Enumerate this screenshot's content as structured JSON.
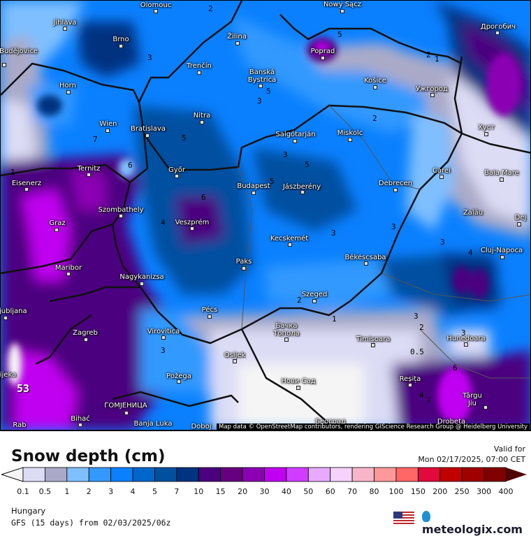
{
  "map": {
    "attribution": "Map data © OpenStreetMap contributors, rendering GIScience Research Group @ Heidelberg University",
    "cities": [
      "Olomouc",
      "Jihlava",
      "Brno",
      "České Budějovice",
      "Horn",
      "Žilina",
      "Trenčín",
      "Banská Bystrica",
      "Poprad",
      "Nowy Sącz",
      "Košice",
      "Ужгород",
      "Дрогобич",
      "Хуст",
      "Wien",
      "Bratislava",
      "Nitra",
      "Győr",
      "Salgótarján",
      "Miskolc",
      "Ternitz",
      "Eisenerz",
      "Budapest",
      "Jászberény",
      "Debrecen",
      "Carei",
      "Baia Mare",
      "Szombathely",
      "Graz",
      "Veszprém",
      "Zalău",
      "Dej",
      "Kecskemét",
      "Cluj-Napoca",
      "Maribor",
      "Nagykanizsa",
      "Paks",
      "Békéscsaba",
      "Ljubljana",
      "Szeged",
      "Pécs",
      "Zagreb",
      "Virovitica",
      "Бачка Топола",
      "Timișoara",
      "Hunedoara",
      "Osijek",
      "Požega",
      "Rijeka",
      "Reșița",
      "Нови Сад",
      "Târgu Jiu",
      "ГОМЈЕНИЦА",
      "Bihać",
      "Banja Luka",
      "Doboj",
      "Београд",
      "Drobeta",
      "Rab"
    ],
    "contour_labels": [
      "2",
      "3",
      "3",
      "5",
      "7",
      "1",
      "6",
      "5",
      "5",
      "2",
      "1",
      "2",
      "3",
      "5",
      "3",
      "5",
      "4",
      "6",
      "3",
      "2",
      "1",
      "3",
      "2",
      "3",
      "4",
      "3",
      "0.5",
      "6",
      "4",
      "7",
      "3",
      "53"
    ]
  },
  "header": {
    "title": "Snow depth (cm)",
    "valid_label": "Valid for",
    "valid_time": "Mon 02/17/2025, 07:00 CET"
  },
  "legend": {
    "labels": [
      "0.1",
      "0.5",
      "1",
      "2",
      "3",
      "4",
      "5",
      "7",
      "10",
      "15",
      "20",
      "30",
      "40",
      "50",
      "60",
      "70",
      "80",
      "100",
      "150",
      "200",
      "250",
      "300",
      "400"
    ],
    "colors": [
      "#dcdcf5",
      "#aaaac8",
      "#7fbfff",
      "#3399ff",
      "#0a80ff",
      "#0066cc",
      "#0050a0",
      "#003380",
      "#4b0080",
      "#660080",
      "#8c00b4",
      "#c000f0",
      "#d23cff",
      "#e8aaff",
      "#f5d2ff",
      "#f8b4c8",
      "#ff9999",
      "#ff6666",
      "#e00a3c",
      "#c00000",
      "#a00000",
      "#800000"
    ],
    "under_color": "#f5f5f5",
    "over_color": "#500000"
  },
  "footer": {
    "region": "Hungary",
    "model": "GFS (15 days) from  02/03/2025/06z",
    "brand": "meteologix.com"
  }
}
